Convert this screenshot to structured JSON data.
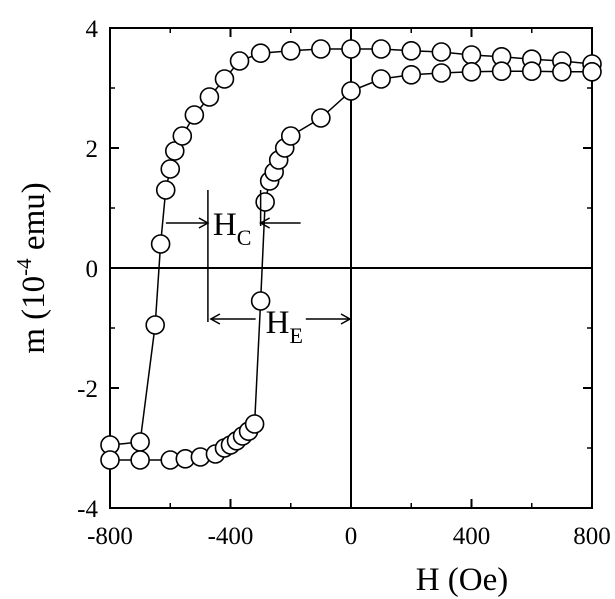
{
  "chart_data": {
    "type": "scatter",
    "title": "",
    "xlabel": "H (Oe)",
    "ylabel_main": "m (10",
    "ylabel_sup": "-4",
    "ylabel_tail": " emu)",
    "xlim": [
      -800,
      800
    ],
    "ylim": [
      -4,
      4
    ],
    "xticks": [
      -800,
      -400,
      0,
      400,
      800
    ],
    "yticks": [
      -4,
      -2,
      0,
      2,
      4
    ],
    "xtick_labels": [
      "-800",
      "-400",
      "0",
      "400",
      "800"
    ],
    "ytick_labels": [
      "-4",
      "-2",
      "0",
      "2",
      "4"
    ],
    "grid": false,
    "zero_lines": true,
    "marker": "open-circle",
    "series": [
      {
        "values_description_none": true,
        "x": [
          -800,
          -700,
          -650,
          -632,
          -615,
          -600,
          -585,
          -560,
          -520,
          -470,
          -420,
          -370,
          -300,
          -200,
          -100,
          0,
          100,
          200,
          300,
          400,
          500,
          600,
          700,
          800
        ],
        "y": [
          -2.95,
          -2.9,
          -0.95,
          0.4,
          1.3,
          1.65,
          1.95,
          2.2,
          2.55,
          2.85,
          3.15,
          3.45,
          3.58,
          3.62,
          3.65,
          3.65,
          3.65,
          3.62,
          3.6,
          3.55,
          3.52,
          3.48,
          3.45,
          3.4
        ]
      },
      {
        "x": [
          -800,
          -700,
          -600,
          -550,
          -500,
          -450,
          -420,
          -400,
          -380,
          -360,
          -340,
          -320,
          -300,
          -285,
          -270,
          -255,
          -240,
          -220,
          -200,
          -100,
          0,
          100,
          200,
          300,
          400,
          500,
          600,
          700,
          800
        ],
        "y": [
          -3.2,
          -3.2,
          -3.2,
          -3.18,
          -3.15,
          -3.1,
          -3.0,
          -2.95,
          -2.88,
          -2.8,
          -2.72,
          -2.6,
          -0.55,
          1.1,
          1.45,
          1.6,
          1.8,
          2.0,
          2.2,
          2.5,
          2.95,
          3.15,
          3.22,
          3.25,
          3.27,
          3.28,
          3.28,
          3.27,
          3.27
        ]
      }
    ],
    "annotations": {
      "hc_label_main": "H",
      "hc_label_sub": "C",
      "he_label_main": "H",
      "he_label_sub": "E",
      "hc_left_x": -475,
      "hc_right_x": -300,
      "hc_y": 0.75,
      "he_left_x": -475,
      "he_right_x": 0,
      "he_y": -0.85,
      "marker_line_x": -475,
      "marker_line_top": 1.3,
      "marker_line_bottom": -0.9,
      "right_tick_x": -300,
      "right_tick_top": 1.3,
      "right_tick_bottom": 0.7
    }
  }
}
